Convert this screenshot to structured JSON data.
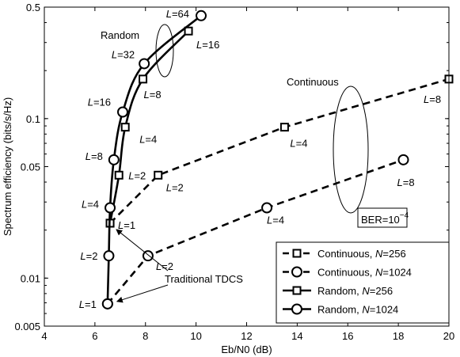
{
  "chart_data": {
    "type": "line",
    "title": "",
    "xlabel": "Eb/N0 (dB)",
    "ylabel": "Spectrum efficiency (bits/s/Hz)",
    "xlim": [
      4,
      20
    ],
    "ylim": [
      0.005,
      0.5
    ],
    "yscale": "log",
    "grid": false,
    "legend_position": "bottom-right",
    "x_ticks": [
      "4",
      "6",
      "8",
      "10",
      "12",
      "14",
      "16",
      "18",
      "20"
    ],
    "y_ticks": [
      "0.005",
      "0.01",
      "0.05",
      "0.1",
      "0.5"
    ],
    "y_tick_values": [
      0.005,
      0.01,
      0.05,
      0.1,
      0.5
    ],
    "series": [
      {
        "name": "Continuous, N=256",
        "line_style": "dashed",
        "marker": "square",
        "points": [
          {
            "x": 6.6,
            "y": 0.0221,
            "label": "L=1"
          },
          {
            "x": 8.5,
            "y": 0.0442,
            "label": "L=2"
          },
          {
            "x": 13.5,
            "y": 0.0884,
            "label": "L=4"
          },
          {
            "x": 20.0,
            "y": 0.177,
            "label": "L=8"
          }
        ]
      },
      {
        "name": "Continuous, N=1024",
        "line_style": "dashed",
        "marker": "circle",
        "points": [
          {
            "x": 6.5,
            "y": 0.0069,
            "label": "L=1"
          },
          {
            "x": 8.1,
            "y": 0.0138,
            "label": "L=2"
          },
          {
            "x": 12.8,
            "y": 0.0276,
            "label": "L=4"
          },
          {
            "x": 18.2,
            "y": 0.0552,
            "label": "L=8"
          }
        ]
      },
      {
        "name": "Random, N=256",
        "line_style": "solid",
        "marker": "square",
        "points": [
          {
            "x": 6.6,
            "y": 0.0221,
            "label": "L=1"
          },
          {
            "x": 6.95,
            "y": 0.0442,
            "label": "L=2"
          },
          {
            "x": 7.2,
            "y": 0.0884,
            "label": "L=4"
          },
          {
            "x": 7.9,
            "y": 0.177,
            "label": "L=8"
          },
          {
            "x": 9.7,
            "y": 0.354,
            "label": "L=16"
          }
        ]
      },
      {
        "name": "Random, N=1024",
        "line_style": "solid",
        "marker": "circle",
        "points": [
          {
            "x": 6.5,
            "y": 0.0069,
            "label": "L=1"
          },
          {
            "x": 6.55,
            "y": 0.0138,
            "label": "L=2"
          },
          {
            "x": 6.6,
            "y": 0.0276,
            "label": "L=4"
          },
          {
            "x": 6.75,
            "y": 0.0552,
            "label": "L=8"
          },
          {
            "x": 7.1,
            "y": 0.11,
            "label": "L=16"
          },
          {
            "x": 7.95,
            "y": 0.221,
            "label": "L=32"
          },
          {
            "x": 10.2,
            "y": 0.442,
            "label": "L=64"
          }
        ]
      }
    ],
    "annotations": {
      "random_group": "Random",
      "continuous_group": "Continuous",
      "traditional": "Traditional TDCS",
      "ber_box": {
        "base": "BER=10",
        "exponent": "−4"
      }
    },
    "legend_entries": [
      {
        "prefix": "Continuous, ",
        "var": "N",
        "value": "=256"
      },
      {
        "prefix": "Continuous, ",
        "var": "N",
        "value": "=1024"
      },
      {
        "prefix": "Random, ",
        "var": "N",
        "value": "=256"
      },
      {
        "prefix": "Random, ",
        "var": "N",
        "value": "=1024"
      }
    ]
  }
}
